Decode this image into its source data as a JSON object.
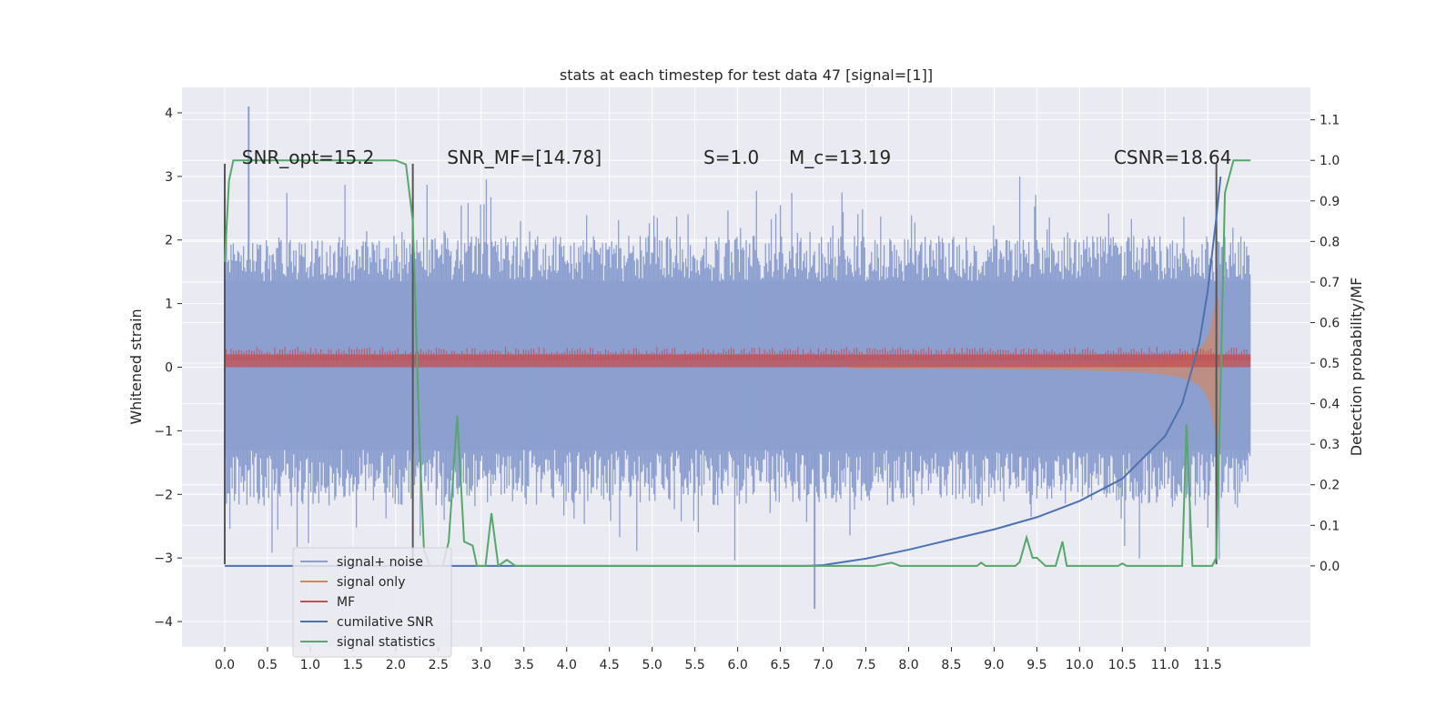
{
  "chart_data": {
    "type": "line",
    "title": "stats at each timestep for test data 47 [signal=[1]]",
    "xlabel": "",
    "ylabel": "Whitened strain",
    "ylabel_right": "Detection probability/MF",
    "xlim": [
      -0.5,
      12.7
    ],
    "ylim": [
      -4.4,
      4.4
    ],
    "ylim_right": [
      -0.2,
      1.18
    ],
    "x_ticks": [
      0.0,
      0.5,
      1.0,
      1.5,
      2.0,
      2.5,
      3.0,
      3.5,
      4.0,
      4.5,
      5.0,
      5.5,
      6.0,
      6.5,
      7.0,
      7.5,
      8.0,
      8.5,
      9.0,
      9.5,
      10.0,
      10.5,
      11.0,
      11.5
    ],
    "x_tick_labels": [
      "0.0",
      "0.5",
      "1.0",
      "1.5",
      "2.0",
      "2.5",
      "3.0",
      "3.5",
      "4.0",
      "4.5",
      "5.0",
      "5.5",
      "6.0",
      "6.5",
      "7.0",
      "7.5",
      "8.0",
      "8.5",
      "9.0",
      "9.5",
      "10.0",
      "10.5",
      "11.0",
      "11.5"
    ],
    "y_ticks": [
      -4,
      -3,
      -2,
      -1,
      0,
      1,
      2,
      3,
      4
    ],
    "y_tick_labels": [
      "−4",
      "−3",
      "−2",
      "−1",
      "0",
      "1",
      "2",
      "3",
      "4"
    ],
    "y_ticks_right": [
      0.0,
      0.1,
      0.2,
      0.3,
      0.4,
      0.5,
      0.6,
      0.7,
      0.8,
      0.9,
      1.0,
      1.1
    ],
    "y_tick_labels_right": [
      "0.0",
      "0.1",
      "0.2",
      "0.3",
      "0.4",
      "0.5",
      "0.6",
      "0.7",
      "0.8",
      "0.9",
      "1.0",
      "1.1"
    ],
    "grid": true,
    "annotations": [
      {
        "text": "SNR_opt=15.2",
        "x": 0.2,
        "y": 3.2
      },
      {
        "text": "SNR_MF=[14.78]",
        "x": 2.6,
        "y": 3.2
      },
      {
        "text": "S=1.0",
        "x": 5.6,
        "y": 3.2
      },
      {
        "text": "M_c=13.19",
        "x": 6.6,
        "y": 3.2
      },
      {
        "text": "CSNR=18.64",
        "x": 10.4,
        "y": 3.2
      }
    ],
    "vlines": [
      {
        "x": 0.0,
        "y0": -3.1,
        "y1": 3.2
      },
      {
        "x": 2.2,
        "y0": -3.1,
        "y1": 3.2
      },
      {
        "x": 11.6,
        "y0": -3.1,
        "y1": 3.2
      }
    ],
    "noise_envelope": {
      "t_end": 12.0,
      "typical_max": 2.0,
      "typical_min": -2.1,
      "dense_max": 1.35,
      "dense_min": -1.3,
      "peak_max": 4.1,
      "peak_min": -3.8
    },
    "chirp_envelope": {
      "t_start": 7.3,
      "t_end": 11.65,
      "max_amp": 1.1
    },
    "mf_band": {
      "t_end": 12.0,
      "center": 0.1,
      "half_width": 0.1
    },
    "cumulative_snr_points": [
      [
        0.0,
        0.0
      ],
      [
        6.8,
        0.0
      ],
      [
        7.0,
        0.002
      ],
      [
        7.5,
        0.018
      ],
      [
        8.0,
        0.04
      ],
      [
        8.5,
        0.065
      ],
      [
        9.0,
        0.09
      ],
      [
        9.5,
        0.12
      ],
      [
        10.0,
        0.16
      ],
      [
        10.5,
        0.215
      ],
      [
        11.0,
        0.32
      ],
      [
        11.2,
        0.4
      ],
      [
        11.4,
        0.55
      ],
      [
        11.5,
        0.68
      ],
      [
        11.6,
        0.86
      ],
      [
        11.65,
        0.96
      ]
    ],
    "signal_statistics_points": [
      [
        0.0,
        0.75
      ],
      [
        0.05,
        0.95
      ],
      [
        0.1,
        1.0
      ],
      [
        2.0,
        1.0
      ],
      [
        2.12,
        0.99
      ],
      [
        2.2,
        0.85
      ],
      [
        2.28,
        0.3
      ],
      [
        2.33,
        0.04
      ],
      [
        2.4,
        0.0
      ],
      [
        2.55,
        0.0
      ],
      [
        2.62,
        0.06
      ],
      [
        2.72,
        0.37
      ],
      [
        2.8,
        0.06
      ],
      [
        2.9,
        0.05
      ],
      [
        2.95,
        0.0
      ],
      [
        3.05,
        0.0
      ],
      [
        3.12,
        0.13
      ],
      [
        3.2,
        0.0
      ],
      [
        3.3,
        0.015
      ],
      [
        3.4,
        0.0
      ],
      [
        7.6,
        0.0
      ],
      [
        7.8,
        0.008
      ],
      [
        7.9,
        0.0
      ],
      [
        8.8,
        0.0
      ],
      [
        8.85,
        0.008
      ],
      [
        8.9,
        0.0
      ],
      [
        9.25,
        0.0
      ],
      [
        9.3,
        0.01
      ],
      [
        9.38,
        0.07
      ],
      [
        9.45,
        0.02
      ],
      [
        9.5,
        0.02
      ],
      [
        9.6,
        0.0
      ],
      [
        9.72,
        0.0
      ],
      [
        9.8,
        0.06
      ],
      [
        9.85,
        0.0
      ],
      [
        10.45,
        0.0
      ],
      [
        10.5,
        0.006
      ],
      [
        10.55,
        0.0
      ],
      [
        11.2,
        0.0
      ],
      [
        11.25,
        0.35
      ],
      [
        11.32,
        0.0
      ],
      [
        11.55,
        0.0
      ],
      [
        11.6,
        0.02
      ],
      [
        11.65,
        0.45
      ],
      [
        11.7,
        0.92
      ],
      [
        11.8,
        1.0
      ],
      [
        12.0,
        1.0
      ]
    ],
    "legend": {
      "placement": "lower-left",
      "entries": [
        {
          "label": "signal+ noise",
          "color": "#8c9fcf"
        },
        {
          "label": "signal only",
          "color": "#dd8452"
        },
        {
          "label": "MF",
          "color": "#c44e52"
        },
        {
          "label": "cumilative SNR",
          "color": "#4c72b0"
        },
        {
          "label": "signal statistics",
          "color": "#55a868"
        }
      ]
    },
    "colors": {
      "background": "#eaeaf2",
      "grid": "#ffffff",
      "noise": "#8c9fcf",
      "signal": "#dd8452",
      "mf": "#c44e52",
      "csnr": "#4c72b0",
      "stats": "#55a868",
      "vline": "#555555"
    }
  }
}
